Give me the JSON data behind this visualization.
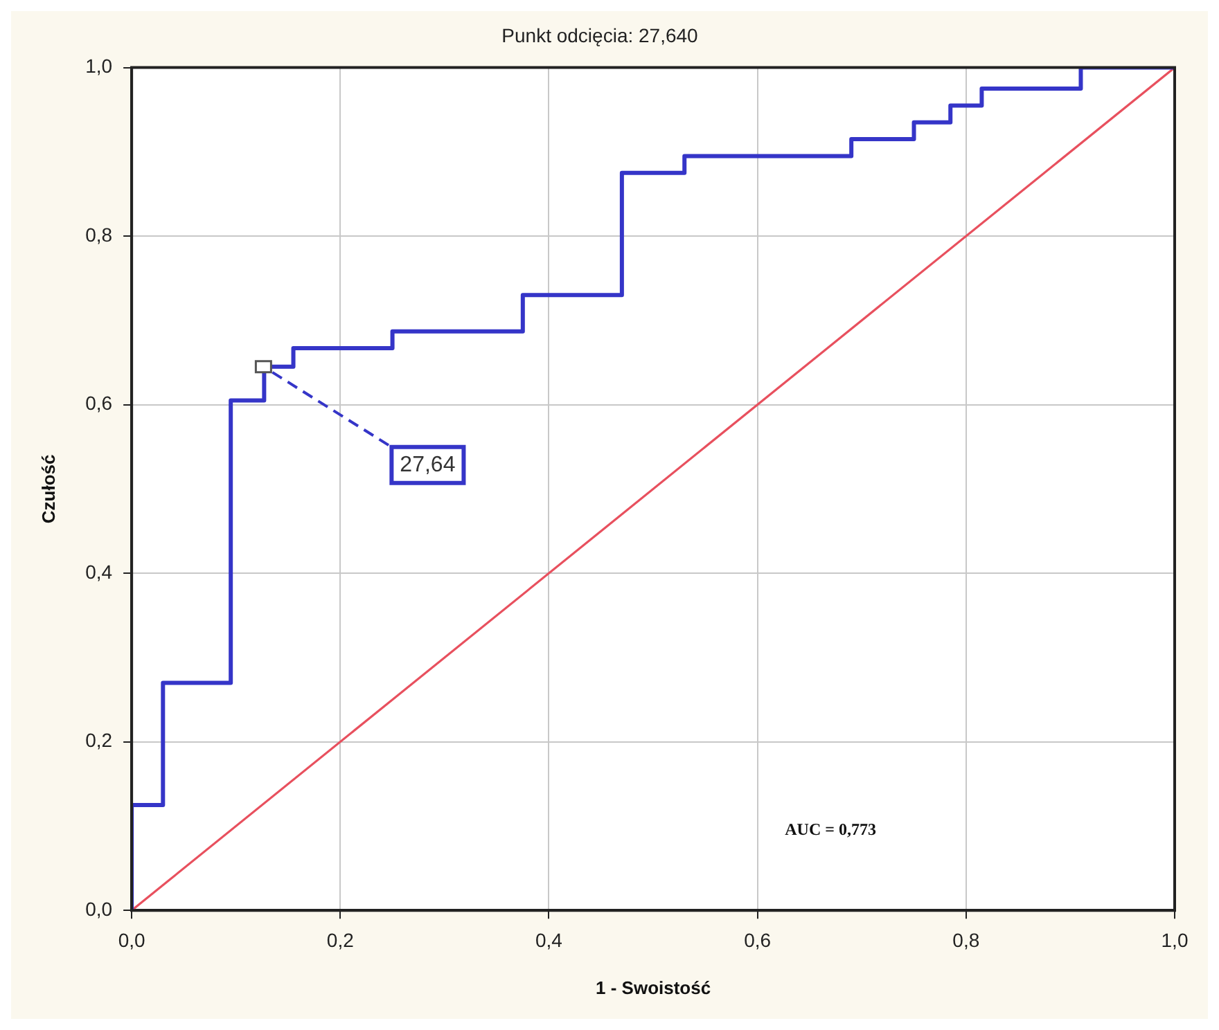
{
  "chart_data": {
    "type": "step",
    "title": "Punkt odcięcia: 27,640",
    "xlabel": "1 - Swoistość",
    "ylabel": "Czułość",
    "series": [
      {
        "type": "step",
        "color": "#3535c8",
        "x": [
          0,
          0,
          0.03,
          0.095,
          0.127,
          0.155,
          0.25,
          0.375,
          0.47,
          0.53,
          0.69,
          0.75,
          0.785,
          0.815,
          0.91,
          1.0
        ],
        "values": [
          0,
          0.125,
          0.27,
          0.605,
          0.645,
          0.667,
          0.687,
          0.73,
          0.875,
          0.895,
          0.915,
          0.935,
          0.955,
          0.975,
          1.0,
          1.0
        ]
      },
      {
        "type": "line",
        "color": "#e8505e",
        "x": [
          0,
          1
        ],
        "values": [
          0,
          1
        ]
      }
    ],
    "xlim": [
      0,
      1
    ],
    "ylim": [
      0,
      1
    ],
    "xticks": [
      {
        "value": 0,
        "label": "0,0"
      },
      {
        "value": 0.2,
        "label": "0,2"
      },
      {
        "value": 0.4,
        "label": "0,4"
      },
      {
        "value": 0.6,
        "label": "0,6"
      },
      {
        "value": 0.8,
        "label": "0,8"
      },
      {
        "value": 1,
        "label": "1,0"
      }
    ],
    "yticks": [
      {
        "value": 0,
        "label": "0,0"
      },
      {
        "value": 0.2,
        "label": "0,2"
      },
      {
        "value": 0.4,
        "label": "0,4"
      },
      {
        "value": 0.6,
        "label": "0,6"
      },
      {
        "value": 0.8,
        "label": "0,8"
      },
      {
        "value": 1,
        "label": "1,0"
      }
    ],
    "grid": true,
    "legend": false,
    "marker": "none",
    "line_style": "solid",
    "annotations": [
      {
        "text": "27,64",
        "x": 0.127,
        "y": 0.645
      },
      "AUC = 0,773"
    ]
  }
}
